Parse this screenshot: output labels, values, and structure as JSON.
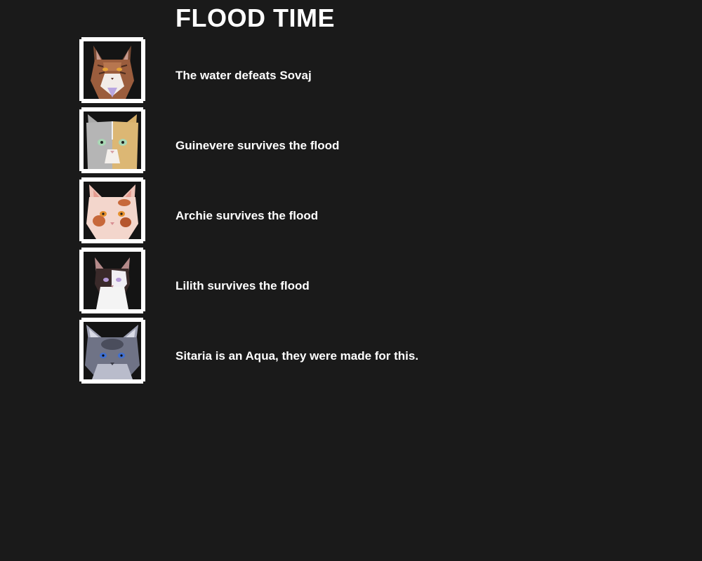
{
  "page": {
    "title": "FLOOD TIME"
  },
  "events": [
    {
      "text": "The water defeats Sovaj",
      "portrait": "brown-tabby-cat-portrait"
    },
    {
      "text": "Guinevere survives the flood",
      "portrait": "grey-and-cream-cat-portrait"
    },
    {
      "text": "Archie survives the flood",
      "portrait": "pink-and-ginger-cat-portrait"
    },
    {
      "text": "Lilith survives the flood",
      "portrait": "dark-and-white-cat-portrait"
    },
    {
      "text": "Sitaria is an Aqua, they were made for this.",
      "portrait": "blue-grey-cat-portrait"
    }
  ],
  "colors": {
    "background": "#1a1a1a",
    "text": "#ffffff",
    "frame": "#ffffff"
  }
}
